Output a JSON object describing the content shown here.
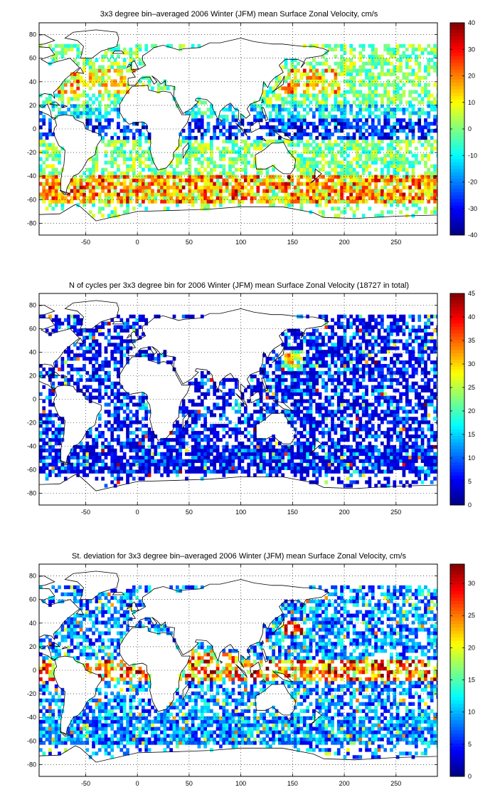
{
  "chart_data": [
    {
      "type": "heatmap",
      "title": "3x3 degree bin–averaged 2006 Winter (JFM) mean Surface Zonal Velocity, cm/s",
      "xlabel": "",
      "ylabel": "",
      "xlim": [
        -95,
        290
      ],
      "ylim": [
        -90,
        90
      ],
      "xticks": [
        "-50",
        "0",
        "50",
        "100",
        "150",
        "200",
        "250"
      ],
      "xtick_values": [
        -50,
        0,
        50,
        100,
        150,
        200,
        250
      ],
      "yticks": [
        "80",
        "60",
        "40",
        "20",
        "0",
        "-20",
        "-40",
        "-60",
        "-80"
      ],
      "ytick_values": [
        80,
        60,
        40,
        20,
        0,
        -20,
        -40,
        -60,
        -80
      ],
      "colorbar": {
        "min": -40,
        "max": 40,
        "ticks": [
          "40",
          "30",
          "20",
          "10",
          "0",
          "-10",
          "-20",
          "-30",
          "-40"
        ],
        "tick_values": [
          40,
          30,
          20,
          10,
          0,
          -10,
          -20,
          -30,
          -40
        ]
      },
      "colormap": "jet",
      "grid": true,
      "bin_size_deg": 3,
      "field": "velocity"
    },
    {
      "type": "heatmap",
      "title": "N of cycles per 3x3 degree bin for 2006 Winter (JFM) mean Surface Zonal Velocity (18727 in total)",
      "xlabel": "",
      "ylabel": "",
      "xlim": [
        -95,
        290
      ],
      "ylim": [
        -90,
        90
      ],
      "xticks": [
        "-50",
        "0",
        "50",
        "100",
        "150",
        "200",
        "250"
      ],
      "xtick_values": [
        -50,
        0,
        50,
        100,
        150,
        200,
        250
      ],
      "yticks": [
        "80",
        "60",
        "40",
        "20",
        "0",
        "-20",
        "-40",
        "-60",
        "-80"
      ],
      "ytick_values": [
        80,
        60,
        40,
        20,
        0,
        -20,
        -40,
        -60,
        -80
      ],
      "colorbar": {
        "min": 0,
        "max": 45,
        "ticks": [
          "45",
          "40",
          "35",
          "30",
          "25",
          "20",
          "15",
          "10",
          "5",
          "0"
        ],
        "tick_values": [
          45,
          40,
          35,
          30,
          25,
          20,
          15,
          10,
          5,
          0
        ]
      },
      "colormap": "jet",
      "grid": true,
      "bin_size_deg": 3,
      "field": "count"
    },
    {
      "type": "heatmap",
      "title": "St. deviation for 3x3 degree bin–averaged 2006 Winter (JFM) mean Surface Zonal Velocity, cm/s",
      "xlabel": "",
      "ylabel": "",
      "xlim": [
        -95,
        290
      ],
      "ylim": [
        -90,
        90
      ],
      "xticks": [
        "-50",
        "0",
        "50",
        "100",
        "150",
        "200",
        "250"
      ],
      "xtick_values": [
        -50,
        0,
        50,
        100,
        150,
        200,
        250
      ],
      "yticks": [
        "80",
        "60",
        "40",
        "20",
        "0",
        "-20",
        "-40",
        "-60",
        "-80"
      ],
      "ytick_values": [
        80,
        60,
        40,
        20,
        0,
        -20,
        -40,
        -60,
        -80
      ],
      "colorbar": {
        "min": 0,
        "max": 33,
        "ticks": [
          "30",
          "25",
          "20",
          "15",
          "10",
          "5",
          "0"
        ],
        "tick_values": [
          30,
          25,
          20,
          15,
          10,
          5,
          0
        ]
      },
      "colormap": "jet",
      "grid": true,
      "bin_size_deg": 3,
      "field": "stdev"
    }
  ]
}
